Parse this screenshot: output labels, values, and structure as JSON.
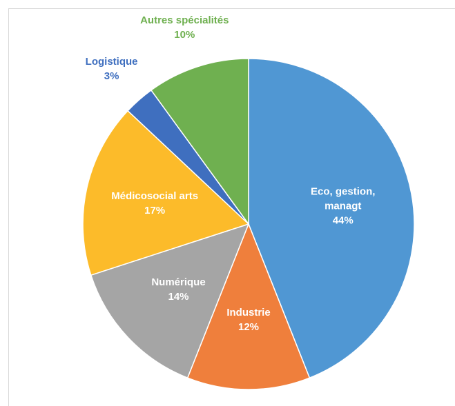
{
  "chart_data": {
    "type": "pie",
    "categories": [
      "Eco, gestion, managt",
      "Industrie",
      "Numérique",
      "Médicosocial arts",
      "Logistique",
      "Autres spécialités"
    ],
    "values": [
      44,
      12,
      14,
      17,
      3,
      10
    ],
    "value_labels": [
      "44%",
      "12%",
      "14%",
      "17%",
      "3%",
      "10%"
    ],
    "colors": [
      "#5097d3",
      "#ef7f3c",
      "#a5a5a5",
      "#fcbb2a",
      "#3f6fbf",
      "#6fb050"
    ]
  }
}
